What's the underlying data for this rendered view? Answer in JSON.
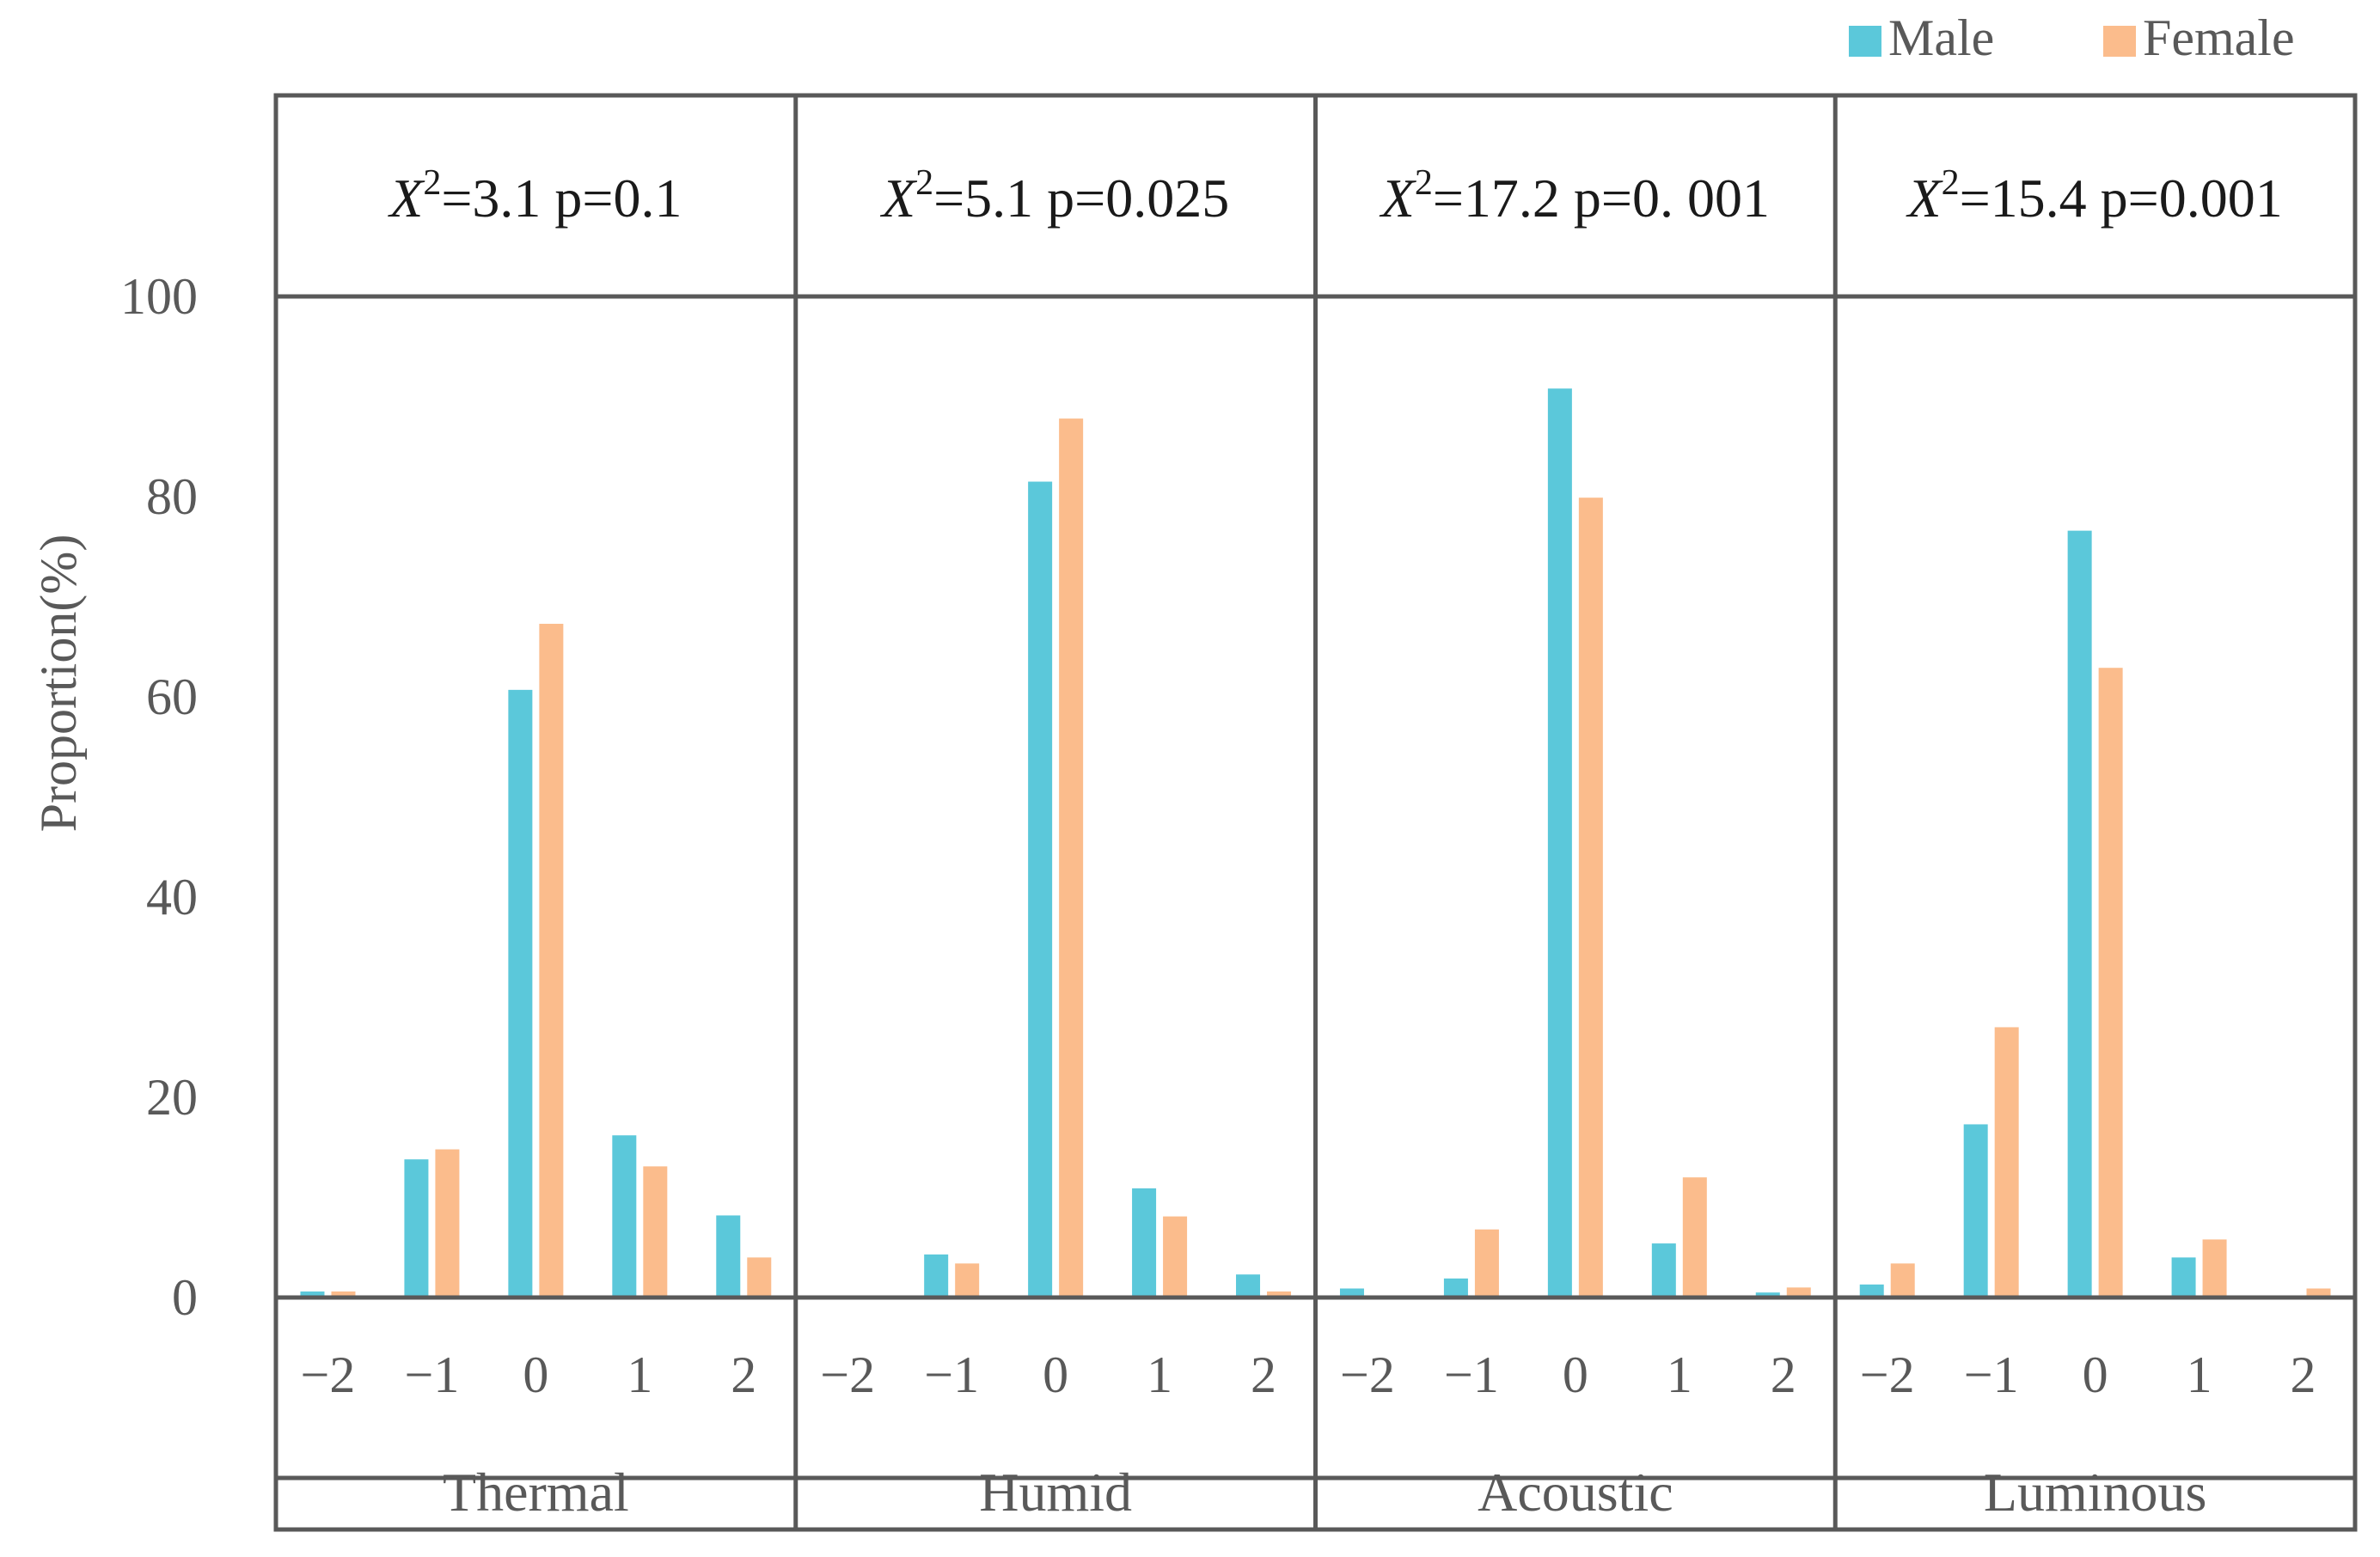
{
  "chart_data": {
    "type": "bar",
    "ylabel": "Proportion(%)",
    "ylim": [
      0,
      100
    ],
    "yticks": [
      0,
      20,
      40,
      60,
      80,
      100
    ],
    "categories": [
      "−2",
      "−1",
      "0",
      "1",
      "2"
    ],
    "legend": [
      {
        "name": "Male",
        "color": "#5bc8da"
      },
      {
        "name": "Female",
        "color": "#fbbc8c"
      }
    ],
    "panels": [
      {
        "name": "Thermal",
        "stat_symbol": "X",
        "stat_exp": "2",
        "stat_text": "=3.1 p=0.1",
        "male": [
          0.6,
          13.8,
          60.7,
          16.2,
          8.2
        ],
        "female": [
          0.6,
          14.8,
          67.3,
          13.1,
          4.0
        ]
      },
      {
        "name": "Humid",
        "stat_symbol": "X",
        "stat_exp": "2",
        "stat_text": "=5.1 p=0.025",
        "male": [
          0.0,
          4.3,
          81.5,
          10.9,
          2.3
        ],
        "female": [
          0.0,
          3.4,
          87.8,
          8.1,
          0.6
        ]
      },
      {
        "name": "Acoustic",
        "stat_symbol": "X",
        "stat_exp": "2",
        "stat_text": "=17.2 p=0. 001",
        "male": [
          0.9,
          1.9,
          90.8,
          5.4,
          0.5
        ],
        "female": [
          0.0,
          6.8,
          79.9,
          12.0,
          1.0
        ]
      },
      {
        "name": "Luminous",
        "stat_symbol": "X",
        "stat_exp": "2",
        "stat_text": "=15.4 p=0.001",
        "male": [
          1.3,
          17.3,
          76.6,
          4.0,
          0.0
        ],
        "female": [
          3.4,
          27.0,
          62.9,
          5.8,
          0.9
        ]
      }
    ]
  }
}
